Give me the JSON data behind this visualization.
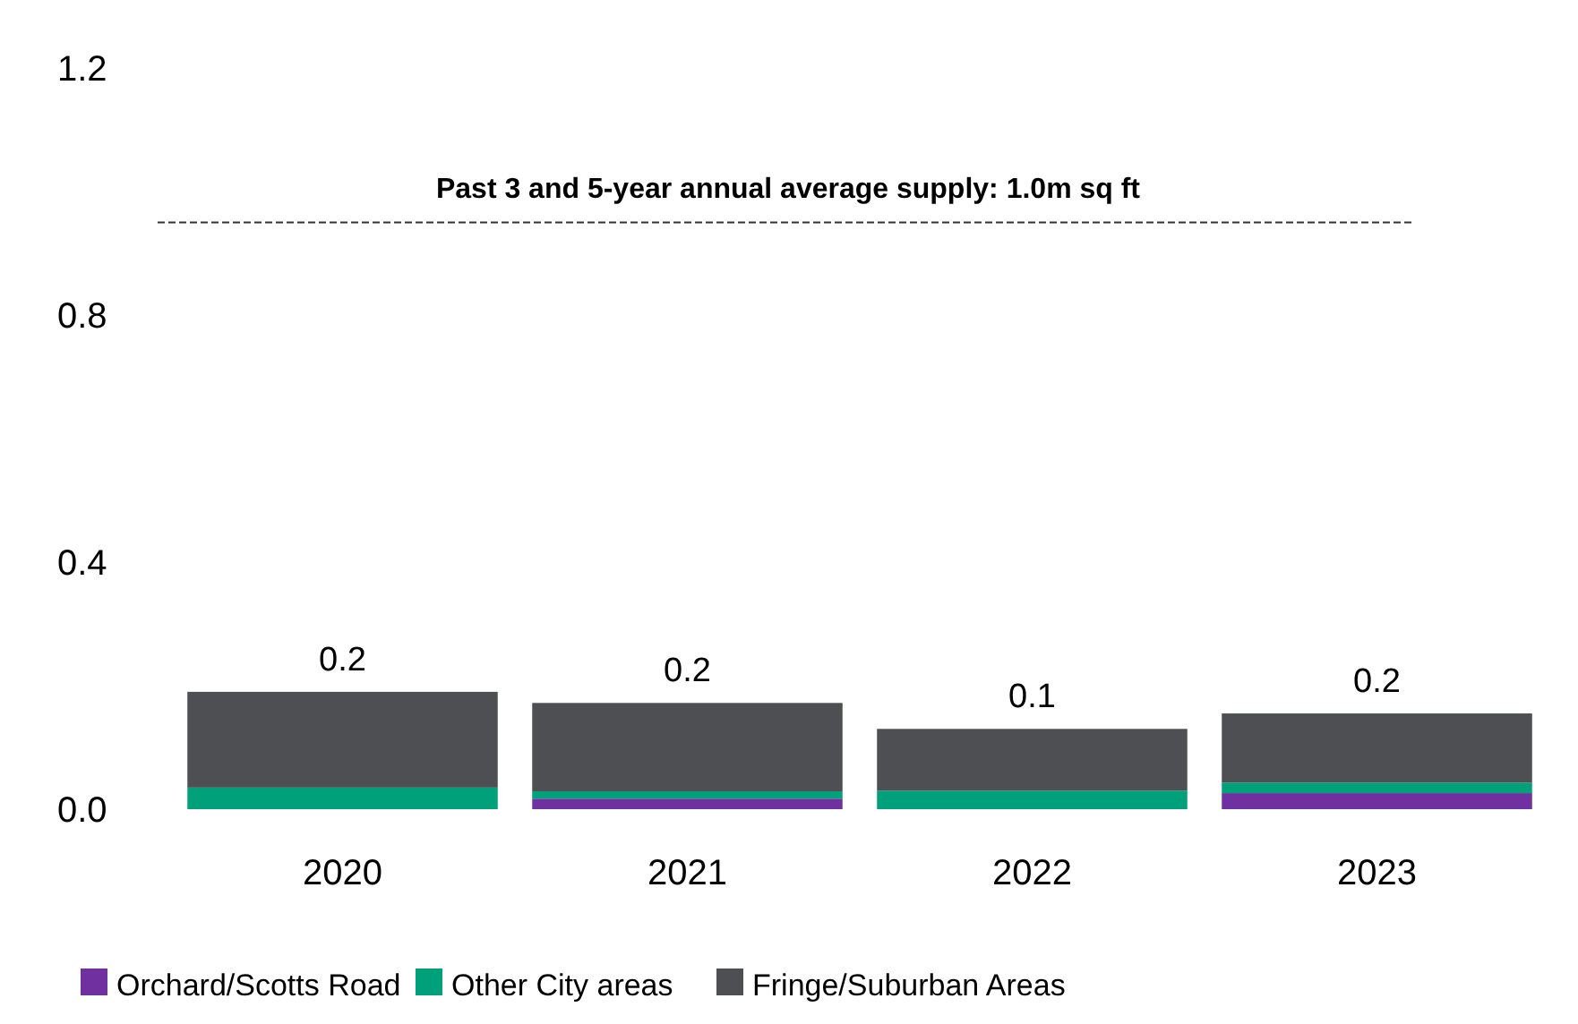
{
  "chart_data": {
    "type": "bar",
    "stacked": true,
    "categories": [
      "2020",
      "2021",
      "2022",
      "2023"
    ],
    "series": [
      {
        "name": "Orchard/Scotts Road",
        "color": "#7030a0",
        "values": [
          0,
          0.017,
          0,
          0.026
        ]
      },
      {
        "name": "Other City areas",
        "color": "#00a07a",
        "values": [
          0.035,
          0.012,
          0.03,
          0.017
        ]
      },
      {
        "name": "Fringe/Suburban Areas",
        "color": "#4d4f53",
        "values": [
          0.155,
          0.143,
          0.1,
          0.112
        ]
      }
    ],
    "ylim": [
      0,
      1.2
    ],
    "yticks": [
      {
        "value": 0,
        "label": "0.0"
      },
      {
        "value": 0.4,
        "label": "0.4"
      },
      {
        "value": 0.8,
        "label": "0.8"
      },
      {
        "value": 1.2,
        "label": "1.2"
      }
    ],
    "totals": [
      "0.2",
      "0.2",
      "0.1",
      "0.2"
    ],
    "ref_lines": [
      {
        "axis": "y",
        "value": 0.95,
        "label": "Past 3 and 5-year annual average supply: 1.0m sq ft",
        "line_style": "dashed"
      }
    ],
    "grid": false,
    "legend": "bottom"
  }
}
